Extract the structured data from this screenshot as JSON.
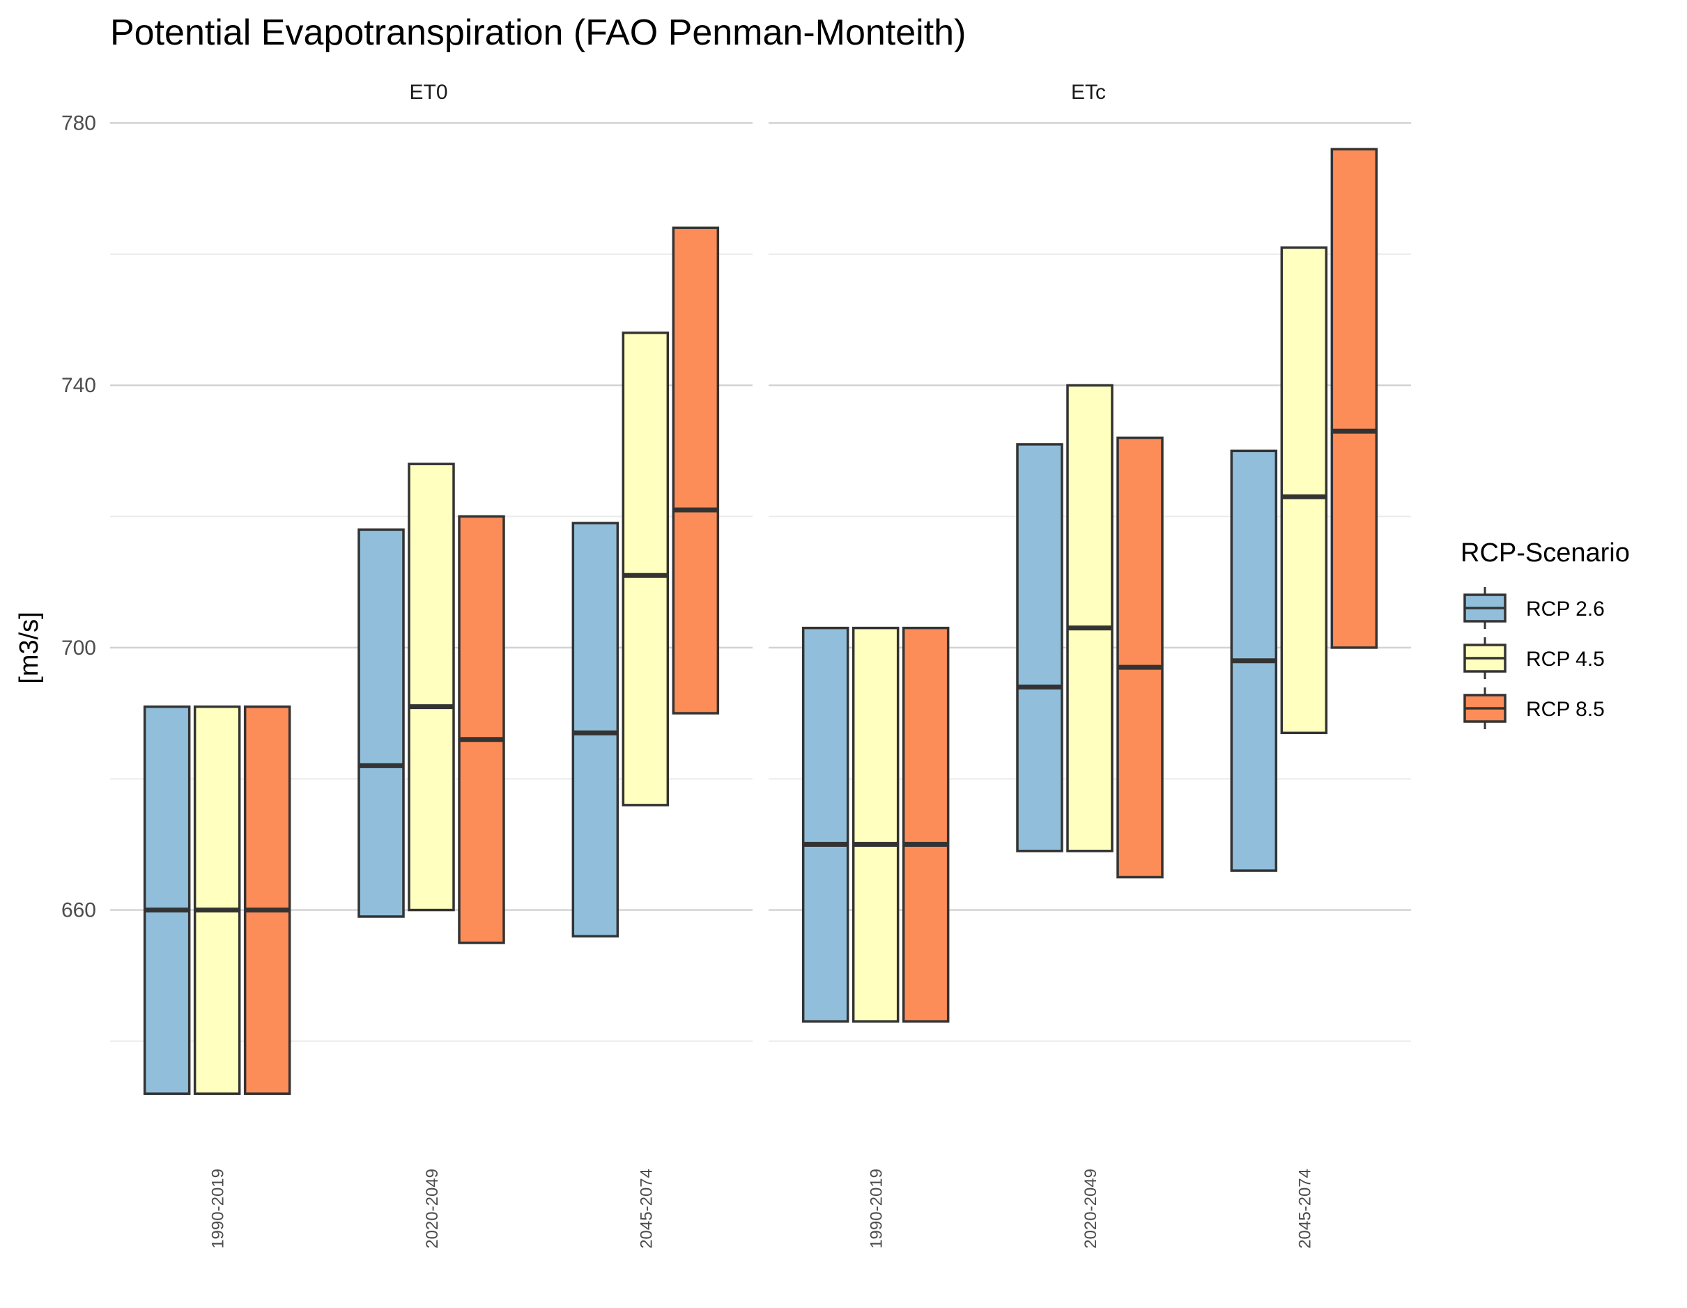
{
  "chart_data": {
    "type": "crossbar",
    "title": "Potential Evapotranspiration (FAO Penman-Monteith)",
    "ylabel": "[m3/s]",
    "xlabel": "",
    "ylim": [
      623,
      786
    ],
    "yticks": [
      660,
      700,
      740,
      780
    ],
    "grid": true,
    "legend": {
      "title": "RCP-Scenario",
      "position": "right",
      "items": [
        {
          "label": "RCP 2.6",
          "color": "#91bfdb"
        },
        {
          "label": "RCP 4.5",
          "color": "#ffffbf"
        },
        {
          "label": "RCP 8.5",
          "color": "#fc8d59"
        }
      ]
    },
    "categories": [
      "1990-2019",
      "2020-2049",
      "2045-2074"
    ],
    "panels": [
      {
        "name": "ET0",
        "series": [
          {
            "name": "RCP 2.6",
            "ymin": [
              632,
              659,
              656
            ],
            "middle": [
              660,
              682,
              687
            ],
            "ymax": [
              691,
              718,
              719
            ]
          },
          {
            "name": "RCP 4.5",
            "ymin": [
              632,
              660,
              676
            ],
            "middle": [
              660,
              691,
              711
            ],
            "ymax": [
              691,
              728,
              748
            ]
          },
          {
            "name": "RCP 8.5",
            "ymin": [
              632,
              655,
              690
            ],
            "middle": [
              660,
              686,
              721
            ],
            "ymax": [
              691,
              720,
              764
            ]
          }
        ]
      },
      {
        "name": "ETc",
        "series": [
          {
            "name": "RCP 2.6",
            "ymin": [
              643,
              669,
              666
            ],
            "middle": [
              670,
              694,
              698
            ],
            "ymax": [
              703,
              731,
              730
            ]
          },
          {
            "name": "RCP 4.5",
            "ymin": [
              643,
              669,
              687
            ],
            "middle": [
              670,
              703,
              723
            ],
            "ymax": [
              703,
              740,
              761
            ]
          },
          {
            "name": "RCP 8.5",
            "ymin": [
              643,
              665,
              700
            ],
            "middle": [
              670,
              697,
              733
            ],
            "ymax": [
              703,
              732,
              776
            ]
          }
        ]
      }
    ]
  }
}
